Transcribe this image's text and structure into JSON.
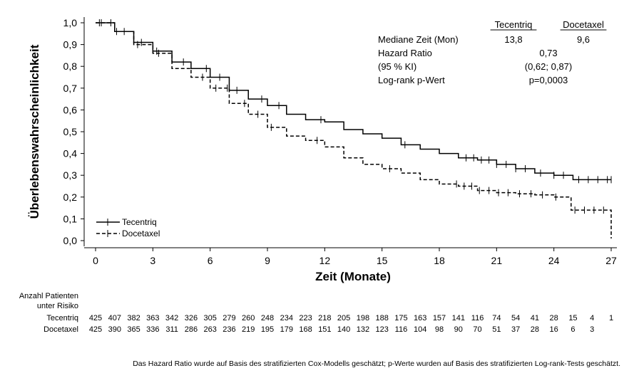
{
  "chart_data": {
    "type": "line",
    "subtype": "kaplan-meier",
    "xlabel": "Zeit (Monate)",
    "ylabel": "Überlebenswahrscheinlichkeit",
    "xlim": [
      0,
      27
    ],
    "ylim": [
      0,
      1
    ],
    "xticks": [
      "0",
      "3",
      "6",
      "9",
      "12",
      "15",
      "18",
      "21",
      "24",
      "27"
    ],
    "yticks": [
      "0,0",
      "0,1",
      "0,2",
      "0,3",
      "0,4",
      "0,5",
      "0,6",
      "0,7",
      "0,8",
      "0,9",
      "1,0"
    ],
    "grid": false,
    "legend_position": "bottom-left",
    "series": [
      {
        "name": "Tecentriq",
        "style": "solid",
        "x": [
          0,
          1,
          2,
          3,
          4,
          5,
          6,
          7,
          8,
          9,
          10,
          11,
          12,
          13,
          14,
          15,
          16,
          17,
          18,
          19,
          20,
          21,
          22,
          23,
          24,
          25,
          27
        ],
        "y": [
          1.0,
          0.96,
          0.91,
          0.87,
          0.82,
          0.79,
          0.75,
          0.69,
          0.65,
          0.62,
          0.58,
          0.555,
          0.545,
          0.51,
          0.49,
          0.47,
          0.44,
          0.42,
          0.4,
          0.38,
          0.37,
          0.35,
          0.33,
          0.31,
          0.3,
          0.28,
          0.28
        ],
        "censored_x": [
          0.2,
          0.8,
          1.5,
          2.4,
          3.2,
          4.6,
          5.8,
          6.5,
          7.4,
          8.7,
          9.6,
          11.8,
          16.2,
          19.4,
          19.8,
          20.2,
          20.6,
          21.0,
          21.5,
          22.0,
          22.5,
          23.3,
          24.0,
          24.5,
          25.3,
          25.8,
          26.3,
          26.8,
          27
        ]
      },
      {
        "name": "Docetaxel",
        "style": "dashed",
        "x": [
          0,
          1,
          2,
          3,
          4,
          5,
          6,
          7,
          8,
          9,
          10,
          11,
          12,
          13,
          14,
          15,
          16,
          17,
          18,
          19,
          20,
          21,
          22,
          23,
          24,
          24.9,
          27
        ],
        "y": [
          1.0,
          0.96,
          0.9,
          0.86,
          0.79,
          0.75,
          0.7,
          0.63,
          0.58,
          0.52,
          0.48,
          0.46,
          0.43,
          0.38,
          0.35,
          0.33,
          0.31,
          0.28,
          0.26,
          0.25,
          0.23,
          0.22,
          0.215,
          0.21,
          0.2,
          0.14,
          0.14
        ],
        "censored_x": [
          0.3,
          1.1,
          2.2,
          3.3,
          5.6,
          6.3,
          6.9,
          7.8,
          8.5,
          9.2,
          11.6,
          15.4,
          18.9,
          19.3,
          19.7,
          20.1,
          20.6,
          21.1,
          21.6,
          22.2,
          22.8,
          23.4,
          24.1,
          25.1,
          25.6,
          26.1,
          26.6
        ]
      }
    ],
    "stats": {
      "col_headers": [
        "Tecentriq",
        "Docetaxel"
      ],
      "rows": [
        {
          "label": "Mediane Zeit (Mon)",
          "values": [
            "13,8",
            "9,6"
          ]
        },
        {
          "label": "Hazard Ratio",
          "values": [
            "0,73"
          ]
        },
        {
          "label": "(95 % KI)",
          "values": [
            "(0,62; 0,87)"
          ]
        },
        {
          "label": "Log-rank p-Wert",
          "values": [
            "p=0,0003"
          ]
        }
      ]
    },
    "at_risk": {
      "title_line1": "Anzahl Patienten",
      "title_line2": "unter Risiko",
      "rows": [
        {
          "name": "Tecentriq",
          "values": [
            "425",
            "407",
            "382",
            "363",
            "342",
            "326",
            "305",
            "279",
            "260",
            "248",
            "234",
            "223",
            "218",
            "205",
            "198",
            "188",
            "175",
            "163",
            "157",
            "141",
            "116",
            "74",
            "54",
            "41",
            "28",
            "15",
            "4",
            "1"
          ]
        },
        {
          "name": "Docetaxel",
          "values": [
            "425",
            "390",
            "365",
            "336",
            "311",
            "286",
            "263",
            "236",
            "219",
            "195",
            "179",
            "168",
            "151",
            "140",
            "132",
            "123",
            "116",
            "104",
            "98",
            "90",
            "70",
            "51",
            "37",
            "28",
            "16",
            "6",
            "3"
          ]
        }
      ]
    },
    "footnote": "Das Hazard Ratio wurde auf Basis des stratifizierten Cox-Modells geschätzt; p-Werte wurden auf Basis des stratifizierten Log-rank-Tests geschätzt."
  }
}
